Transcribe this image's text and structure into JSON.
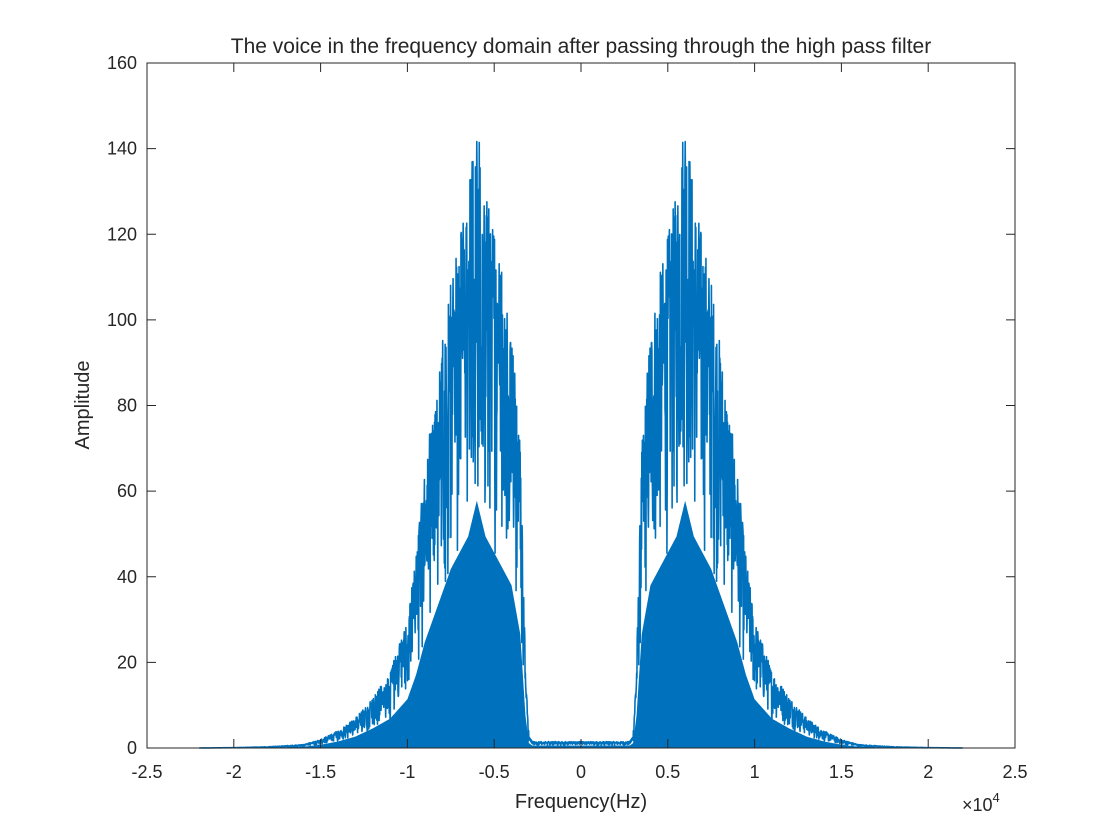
{
  "chart_data": {
    "type": "area",
    "title": "The voice in the frequency domain after passing through the high pass filter",
    "xlabel": "Frequency(Hz)",
    "ylabel": "Amplitude",
    "x_exponent_label": "×10",
    "x_exponent_power": "4",
    "xlim": [
      -2.5,
      2.5
    ],
    "ylim": [
      0,
      160
    ],
    "x_ticks": [
      -2.5,
      -2,
      -1.5,
      -1,
      -0.5,
      0,
      0.5,
      1,
      1.5,
      2,
      2.5
    ],
    "x_tick_labels": [
      "-2.5",
      "-2",
      "-1.5",
      "-1",
      "-0.5",
      "0",
      "0.5",
      "1",
      "1.5",
      "2",
      "2.5"
    ],
    "y_ticks": [
      0,
      20,
      40,
      60,
      80,
      100,
      120,
      140,
      160
    ],
    "y_tick_labels": [
      "0",
      "20",
      "40",
      "60",
      "80",
      "100",
      "120",
      "140",
      "160"
    ],
    "grid": false,
    "series_color": "#0072BD",
    "envelope": {
      "x": [
        -2.2,
        -2.0,
        -1.8,
        -1.6,
        -1.5,
        -1.4,
        -1.3,
        -1.2,
        -1.1,
        -1.0,
        -0.95,
        -0.9,
        -0.85,
        -0.8,
        -0.75,
        -0.7,
        -0.65,
        -0.6,
        -0.55,
        -0.5,
        -0.45,
        -0.4,
        -0.35,
        -0.32,
        -0.3,
        -0.28,
        -0.25,
        -0.2,
        -0.1,
        0,
        0.1,
        0.2,
        0.25,
        0.28,
        0.3,
        0.32,
        0.35,
        0.4,
        0.45,
        0.5,
        0.55,
        0.6,
        0.65,
        0.7,
        0.75,
        0.8,
        0.85,
        0.9,
        0.95,
        1.0,
        1.1,
        1.2,
        1.3,
        1.4,
        1.5,
        1.6,
        1.8,
        2.0,
        2.2
      ],
      "y": [
        0,
        0.1,
        0.3,
        0.8,
        2,
        4,
        7,
        12,
        18,
        30,
        45,
        65,
        80,
        95,
        110,
        120,
        130,
        152,
        130,
        120,
        110,
        100,
        70,
        20,
        3,
        1.5,
        1.5,
        1.5,
        1.5,
        1.5,
        1.5,
        1.5,
        1.5,
        1.5,
        3,
        20,
        70,
        100,
        110,
        120,
        130,
        152,
        130,
        120,
        110,
        95,
        80,
        65,
        45,
        30,
        18,
        12,
        7,
        4,
        2,
        0.8,
        0.3,
        0.1,
        0
      ]
    }
  }
}
